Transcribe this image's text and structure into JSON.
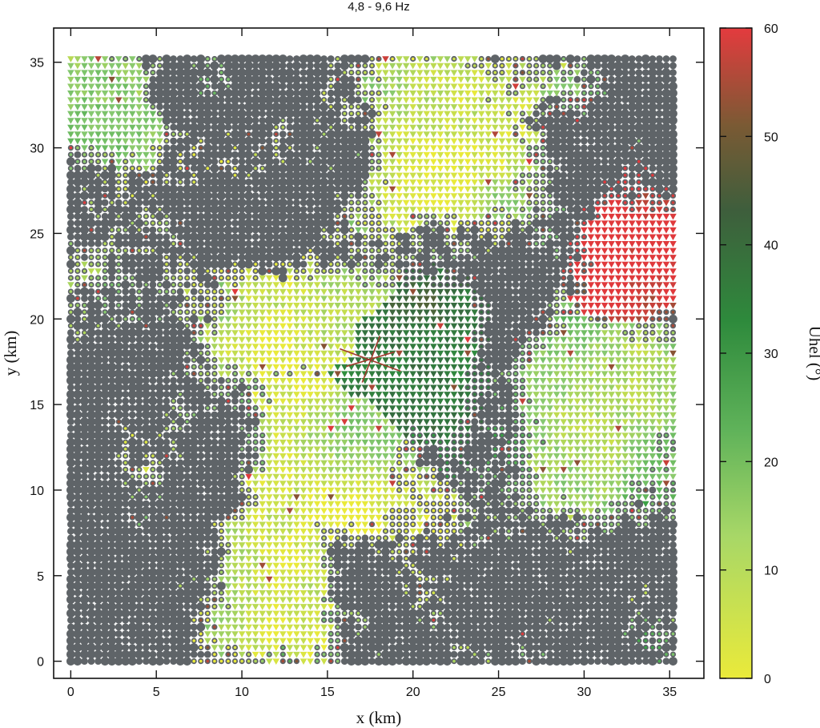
{
  "chart_data": {
    "type": "scatter",
    "title": "4,8 - 9,6 Hz",
    "xlabel": "x (km)",
    "ylabel": "y (km)",
    "xlim": [
      -1,
      37
    ],
    "ylim": [
      -1,
      37
    ],
    "xticks": [
      0,
      5,
      10,
      15,
      20,
      25,
      30,
      35
    ],
    "yticks": [
      0,
      5,
      10,
      15,
      20,
      25,
      30,
      35
    ],
    "grid": false,
    "colorbar": {
      "label": "Úhel (°)",
      "range": [
        0,
        60
      ],
      "ticks": [
        0,
        10,
        20,
        30,
        40,
        50,
        60
      ],
      "colors": [
        "#eaea3a",
        "#86c870",
        "#2e9a3e",
        "#356b40",
        "#6f5a32",
        "#e0393c"
      ]
    },
    "point_grid": {
      "x_start": 0,
      "x_end": 35.2,
      "y_start": 0,
      "y_end": 35.3,
      "spacing": 0.4
    },
    "marker_color": "#5f6468",
    "markers": {
      "circle": "gray circle (masked / no angle)",
      "triangle": "colored down-triangle (angle value)",
      "ring": "small colored dot inside gray ring"
    },
    "source_marker": {
      "x": 17.5,
      "y": 17.6,
      "color": "#a13a2e"
    },
    "regions": [
      {
        "name": "yellow band upper",
        "x": [
          9.5,
          18.5
        ],
        "y": [
          17.0,
          22.0
        ],
        "value": 5
      },
      {
        "name": "yellow band middle",
        "x": [
          11.5,
          18.5
        ],
        "y": [
          8.0,
          17.0
        ],
        "value": 6
      },
      {
        "name": "yellow band lower",
        "x": [
          9.5,
          14.5
        ],
        "y": [
          1.0,
          8.0
        ],
        "value": 8
      },
      {
        "name": "top-middle clearing",
        "x": [
          18.0,
          27.0
        ],
        "y": [
          26.0,
          35.0
        ],
        "value": 7
      },
      {
        "name": "right-middle clearing",
        "x": [
          26.5,
          35.0
        ],
        "y": [
          10.0,
          18.0
        ],
        "value": 12
      },
      {
        "name": "top-left clearing",
        "x": [
          0.0,
          4.0
        ],
        "y": [
          30.5,
          35.0
        ],
        "value": 8
      },
      {
        "name": "red patch",
        "x": [
          31.0,
          34.5
        ],
        "y": [
          21.0,
          26.0
        ],
        "value": 57
      },
      {
        "name": "green patch near source",
        "x": [
          15.0,
          23.0
        ],
        "y": [
          14.0,
          21.0
        ],
        "value": 32
      }
    ]
  }
}
